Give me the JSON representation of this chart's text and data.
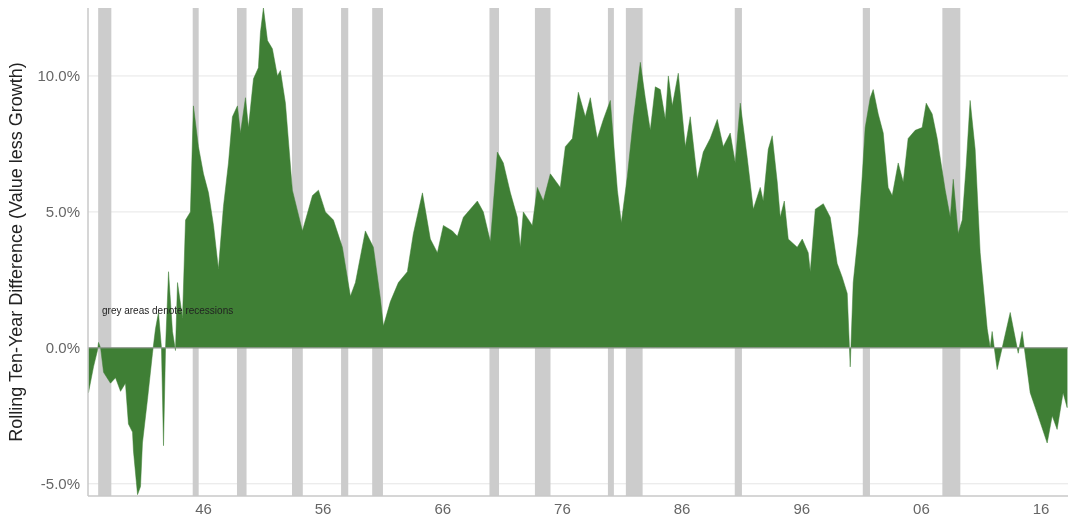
{
  "chart_data": {
    "type": "area",
    "ylabel": "Rolling Ten-Year Difference (Value less Growth)",
    "annotations": [
      "grey areas denote recessions"
    ],
    "xlim": [
      1936.35,
      2018.25
    ],
    "ylim": [
      -5.45,
      12.5
    ],
    "xticks": [
      {
        "value": 1946,
        "label": "46"
      },
      {
        "value": 1956,
        "label": "56"
      },
      {
        "value": 1966,
        "label": "66"
      },
      {
        "value": 1976,
        "label": "76"
      },
      {
        "value": 1986,
        "label": "86"
      },
      {
        "value": 1996,
        "label": "96"
      },
      {
        "value": 2006,
        "label": "06"
      },
      {
        "value": 2016,
        "label": "16"
      }
    ],
    "yticks": [
      {
        "value": -5,
        "label": "-5.0%"
      },
      {
        "value": 0,
        "label": "0.0%"
      },
      {
        "value": 5,
        "label": "5.0%"
      },
      {
        "value": 10,
        "label": "10.0%"
      }
    ],
    "grid": "y",
    "bands": [
      {
        "axis": "x",
        "from": 1937.2,
        "to": 1938.3,
        "color": "#cccccc"
      },
      {
        "axis": "x",
        "from": 1945.1,
        "to": 1945.6,
        "color": "#cccccc"
      },
      {
        "axis": "x",
        "from": 1948.8,
        "to": 1949.6,
        "color": "#cccccc"
      },
      {
        "axis": "x",
        "from": 1953.4,
        "to": 1954.3,
        "color": "#cccccc"
      },
      {
        "axis": "x",
        "from": 1957.5,
        "to": 1958.1,
        "color": "#cccccc"
      },
      {
        "axis": "x",
        "from": 1960.1,
        "to": 1961.0,
        "color": "#cccccc"
      },
      {
        "axis": "x",
        "from": 1969.9,
        "to": 1970.7,
        "color": "#cccccc"
      },
      {
        "axis": "x",
        "from": 1973.7,
        "to": 1975.0,
        "color": "#cccccc"
      },
      {
        "axis": "x",
        "from": 1979.8,
        "to": 1980.3,
        "color": "#cccccc"
      },
      {
        "axis": "x",
        "from": 1981.3,
        "to": 1982.7,
        "color": "#cccccc"
      },
      {
        "axis": "x",
        "from": 1990.4,
        "to": 1991.0,
        "color": "#cccccc"
      },
      {
        "axis": "x",
        "from": 2001.1,
        "to": 2001.7,
        "color": "#cccccc"
      },
      {
        "axis": "x",
        "from": 2007.75,
        "to": 2009.25,
        "color": "#cccccc"
      }
    ],
    "series": [
      {
        "color": "#3f7f35",
        "x": [
          1936.39,
          1936.81,
          1937.14,
          1937.23,
          1937.4,
          1937.65,
          1938.23,
          1938.65,
          1939.07,
          1939.48,
          1939.73,
          1940.07,
          1940.15,
          1940.49,
          1940.74,
          1940.9,
          1941.32,
          1941.74,
          1941.99,
          1942.24,
          1942.49,
          1942.66,
          1942.83,
          1943.08,
          1943.41,
          1943.66,
          1943.83,
          1944.25,
          1944.5,
          1944.91,
          1945.16,
          1945.58,
          1946.0,
          1946.42,
          1946.84,
          1947.25,
          1947.67,
          1948.09,
          1948.42,
          1948.84,
          1949.09,
          1949.51,
          1949.76,
          1950.18,
          1950.59,
          1950.76,
          1951.01,
          1951.35,
          1951.76,
          1952.18,
          1952.43,
          1952.85,
          1953.43,
          1954.27,
          1955.11,
          1955.61,
          1956.19,
          1956.86,
          1957.61,
          1958.28,
          1958.7,
          1959.53,
          1960.2,
          1960.79,
          1961.04,
          1961.62,
          1962.29,
          1963.04,
          1963.54,
          1964.3,
          1964.96,
          1965.55,
          1966.05,
          1966.8,
          1967.22,
          1967.72,
          1968.89,
          1969.39,
          1969.98,
          1970.56,
          1971.06,
          1971.65,
          1972.23,
          1972.48,
          1972.73,
          1973.48,
          1973.9,
          1974.4,
          1974.99,
          1975.82,
          1976.24,
          1976.83,
          1977.33,
          1977.91,
          1978.33,
          1978.91,
          1979.42,
          1980.0,
          1980.59,
          1980.92,
          1981.42,
          1981.92,
          1982.51,
          1982.92,
          1983.34,
          1983.76,
          1984.18,
          1984.6,
          1984.85,
          1985.18,
          1985.68,
          1986.27,
          1986.68,
          1987.27,
          1987.77,
          1988.35,
          1988.94,
          1989.44,
          1990.02,
          1990.44,
          1990.86,
          1991.44,
          1991.95,
          1992.53,
          1992.78,
          1993.2,
          1993.53,
          1993.95,
          1994.2,
          1994.54,
          1994.87,
          1995.62,
          1996.04,
          1996.54,
          1996.71,
          1997.13,
          1997.8,
          1998.38,
          1998.96,
          1999.38,
          1999.8,
          2000.05,
          2000.3,
          2000.72,
          2001.05,
          2001.3,
          2001.72,
          2001.97,
          2002.39,
          2002.81,
          2003.22,
          2003.56,
          2004.06,
          2004.48,
          2004.89,
          2005.48,
          2006.06,
          2006.4,
          2006.9,
          2007.32,
          2007.99,
          2008.41,
          2008.66,
          2009.07,
          2009.41,
          2009.74,
          2010.07,
          2010.49,
          2010.91,
          2011.5,
          2011.75,
          2011.91,
          2012.33,
          2012.75,
          2013.42,
          2014.0,
          2014.09,
          2014.42,
          2015.09,
          2015.67,
          2016.51,
          2016.93,
          2017.34,
          2017.84,
          2018.18
        ],
        "values": [
          -1.65,
          -0.7,
          -0.1,
          0.2,
          0,
          -0.9,
          -1.3,
          -1.1,
          -1.6,
          -1.3,
          -2.8,
          -3.1,
          -3.8,
          -5.4,
          -5.1,
          -3.5,
          -1.9,
          -0.2,
          0.7,
          1.3,
          0,
          -3.6,
          0,
          2.8,
          0.6,
          -0.1,
          2.4,
          1.1,
          4.7,
          5.0,
          8.9,
          7.4,
          6.4,
          5.7,
          4.5,
          2.9,
          5.2,
          6.8,
          8.5,
          8.9,
          7.9,
          9.2,
          8.1,
          9.9,
          10.3,
          11.6,
          12.5,
          11.3,
          11.0,
          10.0,
          10.2,
          9.0,
          5.8,
          4.3,
          5.6,
          5.8,
          5.0,
          4.7,
          3.7,
          1.9,
          2.4,
          4.3,
          3.7,
          1.8,
          0.8,
          1.7,
          2.4,
          2.8,
          4.2,
          5.7,
          4.0,
          3.5,
          4.5,
          4.3,
          4.1,
          4.8,
          5.4,
          5.0,
          3.9,
          7.2,
          6.8,
          5.7,
          4.8,
          3.7,
          5.0,
          4.5,
          5.9,
          5.4,
          6.4,
          5.9,
          7.4,
          7.7,
          9.4,
          8.5,
          9.2,
          7.7,
          8.4,
          9.1,
          5.8,
          4.6,
          6.3,
          8.4,
          10.5,
          9.2,
          8.0,
          9.6,
          9.5,
          8.4,
          10.0,
          8.9,
          10.1,
          7.4,
          8.5,
          6.2,
          7.2,
          7.7,
          8.4,
          7.4,
          7.9,
          6.8,
          9.0,
          7.0,
          5.1,
          5.9,
          5.4,
          7.3,
          7.8,
          6.1,
          4.8,
          5.4,
          4.0,
          3.7,
          4.0,
          3.5,
          2.8,
          5.1,
          5.3,
          4.8,
          3.1,
          2.6,
          2.0,
          -0.7,
          2.4,
          4.2,
          6.3,
          8.1,
          9.2,
          9.5,
          8.6,
          7.9,
          5.9,
          5.6,
          6.8,
          6.1,
          7.7,
          8.0,
          8.1,
          9.0,
          8.6,
          7.7,
          5.8,
          4.8,
          6.2,
          4.2,
          4.7,
          6.7,
          9.1,
          7.3,
          3.5,
          0.7,
          0,
          0.6,
          -0.8,
          0,
          1.3,
          0,
          -0.2,
          0.6,
          -1.65,
          -2.4,
          -3.5,
          -2.5,
          -3.0,
          -1.65,
          -2.2
        ]
      }
    ]
  }
}
